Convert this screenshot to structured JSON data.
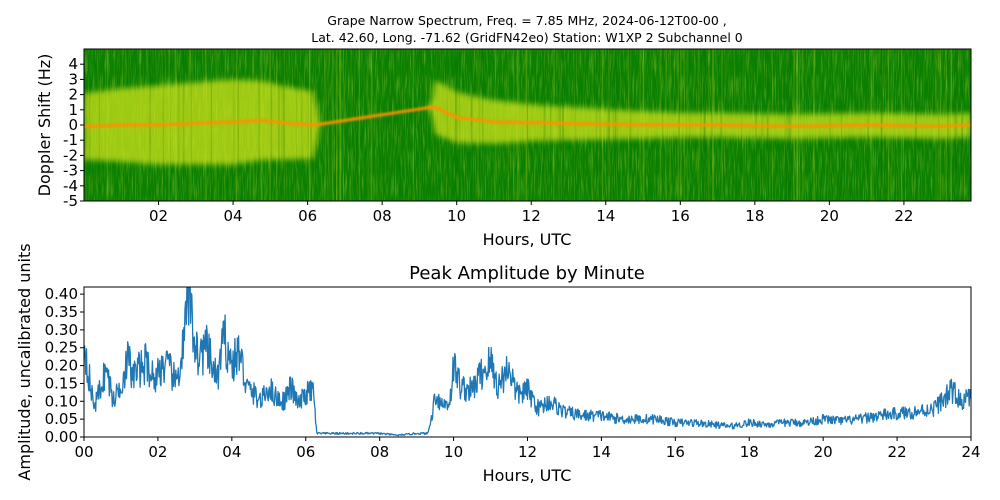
{
  "chart_data": [
    {
      "type": "heatmap",
      "title_line1": "Grape Narrow Spectrum, Freq. = 7.85 MHz, 2024-06-12T00-00 ,",
      "title_line2": "Lat.  42.60, Long. -71.62 (GridFN42eo) Station: W1XP 2 Subchannel 0",
      "xlabel": "Hours, UTC",
      "ylabel": "Doppler Shift (Hz)",
      "xlim": [
        0,
        23.8
      ],
      "ylim": [
        -5,
        5
      ],
      "xticks": [
        "02",
        "04",
        "06",
        "08",
        "10",
        "12",
        "14",
        "16",
        "18",
        "20",
        "22"
      ],
      "yticks": [
        "4",
        "3",
        "2",
        "1",
        "0",
        "-1",
        "-2",
        "-3",
        "-4",
        "-5"
      ],
      "colors": {
        "background": "#0a7f00",
        "mid": "#cde11a",
        "high": "#ff9000",
        "peak": "#e53000"
      },
      "doppler_trace": [
        [
          0.0,
          -0.1
        ],
        [
          1.0,
          0.0
        ],
        [
          2.0,
          0.0
        ],
        [
          3.0,
          0.1
        ],
        [
          4.0,
          0.2
        ],
        [
          4.8,
          0.3
        ],
        [
          5.5,
          0.1
        ],
        [
          6.2,
          0.0
        ],
        [
          9.4,
          1.2
        ],
        [
          10.0,
          0.5
        ],
        [
          11.0,
          0.2
        ],
        [
          13.0,
          0.1
        ],
        [
          15.0,
          0.0
        ],
        [
          17.0,
          0.0
        ],
        [
          19.0,
          -0.1
        ],
        [
          21.0,
          0.0
        ],
        [
          23.0,
          -0.1
        ],
        [
          23.8,
          0.0
        ]
      ],
      "signal_width_hz": [
        [
          0.0,
          2.2
        ],
        [
          2.0,
          2.6
        ],
        [
          4.0,
          2.8
        ],
        [
          6.2,
          2.2
        ],
        [
          6.3,
          0.0
        ],
        [
          9.3,
          0.0
        ],
        [
          9.4,
          1.8
        ],
        [
          12.0,
          1.2
        ],
        [
          16.0,
          0.8
        ],
        [
          20.0,
          0.8
        ],
        [
          23.8,
          0.8
        ]
      ]
    },
    {
      "type": "line",
      "title": "Peak Amplitude by Minute",
      "xlabel": "Hours, UTC",
      "ylabel": "Amplitude, uncalibrated units",
      "xlim": [
        0,
        24
      ],
      "ylim": [
        0,
        0.42
      ],
      "xticks": [
        "00",
        "02",
        "04",
        "06",
        "08",
        "10",
        "12",
        "14",
        "16",
        "18",
        "20",
        "22",
        "24"
      ],
      "yticks": [
        "0.00",
        "0.05",
        "0.10",
        "0.15",
        "0.20",
        "0.25",
        "0.30",
        "0.35",
        "0.40"
      ],
      "line_color": "#1f77b4",
      "series": [
        {
          "x": [
            0.0,
            0.1,
            0.2,
            0.3,
            0.45,
            0.6,
            0.8,
            1.0,
            1.2,
            1.3,
            1.5,
            1.7,
            1.9,
            2.1,
            2.3,
            2.5,
            2.7,
            2.85,
            2.95,
            3.1,
            3.3,
            3.5,
            3.6,
            3.8,
            4.0,
            4.2,
            4.4,
            4.6,
            4.8,
            5.0,
            5.2,
            5.4,
            5.6,
            5.8,
            6.0,
            6.2,
            6.3,
            6.4,
            7.0,
            7.5,
            8.0,
            8.5,
            9.0,
            9.3,
            9.4,
            9.5,
            9.7,
            9.9,
            10.0,
            10.2,
            10.5,
            10.7,
            11.0,
            11.2,
            11.5,
            11.7,
            12.0,
            12.3,
            12.6,
            13.0,
            13.5,
            14.0,
            14.5,
            15.0,
            15.5,
            16.0,
            16.5,
            17.0,
            17.5,
            18.0,
            18.5,
            19.0,
            19.5,
            20.0,
            20.5,
            21.0,
            21.5,
            22.0,
            22.5,
            23.0,
            23.3,
            23.5,
            23.7,
            24.0
          ],
          "values": [
            0.27,
            0.2,
            0.12,
            0.09,
            0.14,
            0.19,
            0.1,
            0.15,
            0.22,
            0.17,
            0.19,
            0.21,
            0.16,
            0.2,
            0.19,
            0.15,
            0.26,
            0.42,
            0.3,
            0.22,
            0.25,
            0.19,
            0.16,
            0.28,
            0.2,
            0.24,
            0.14,
            0.12,
            0.1,
            0.14,
            0.11,
            0.1,
            0.14,
            0.09,
            0.12,
            0.13,
            0.01,
            0.01,
            0.01,
            0.01,
            0.01,
            0.005,
            0.01,
            0.01,
            0.05,
            0.12,
            0.09,
            0.1,
            0.2,
            0.14,
            0.13,
            0.17,
            0.21,
            0.14,
            0.2,
            0.12,
            0.13,
            0.08,
            0.1,
            0.07,
            0.06,
            0.06,
            0.05,
            0.05,
            0.05,
            0.04,
            0.04,
            0.035,
            0.03,
            0.04,
            0.035,
            0.04,
            0.04,
            0.05,
            0.045,
            0.05,
            0.06,
            0.065,
            0.07,
            0.08,
            0.11,
            0.13,
            0.1,
            0.11
          ]
        }
      ]
    }
  ]
}
